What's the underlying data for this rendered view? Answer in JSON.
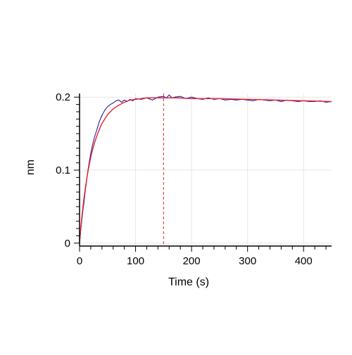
{
  "chart_data": {
    "type": "line",
    "xlabel": "Time (s)",
    "ylabel": "nm",
    "xlim": [
      0,
      450
    ],
    "ylim": [
      -0.004,
      0.205
    ],
    "x_ticks": [
      0,
      100,
      200,
      300,
      400
    ],
    "x_tick_labels": [
      "0",
      "100",
      "200",
      "300",
      "400"
    ],
    "y_ticks": [
      0,
      0.1,
      0.2
    ],
    "y_tick_labels": [
      "0",
      "0.1",
      "0.2"
    ],
    "grid": true,
    "legend": "none",
    "colors": {
      "measured": "#1f1f9e",
      "fit": "#e8202a",
      "marker_line": "#e8202a",
      "grid": "#e6e6e6",
      "axis": "#000000"
    },
    "series": [
      {
        "style": "measured",
        "x": [
          0,
          2,
          4,
          6,
          8,
          10,
          12,
          15,
          18,
          21,
          24,
          27,
          30,
          35,
          40,
          45,
          50,
          55,
          60,
          65,
          70,
          75,
          80,
          85,
          90,
          95,
          100,
          110,
          120,
          130,
          140,
          150,
          155,
          160,
          165,
          170,
          180,
          190,
          200,
          210,
          220,
          230,
          240,
          250,
          260,
          270,
          280,
          290,
          300,
          310,
          320,
          330,
          340,
          350,
          360,
          370,
          380,
          390,
          400,
          410,
          420,
          430,
          440,
          450
        ],
        "y": [
          0.0,
          0.017,
          0.031,
          0.045,
          0.056,
          0.071,
          0.082,
          0.1,
          0.114,
          0.127,
          0.137,
          0.146,
          0.153,
          0.166,
          0.175,
          0.182,
          0.187,
          0.19,
          0.192,
          0.195,
          0.196,
          0.193,
          0.196,
          0.194,
          0.197,
          0.195,
          0.198,
          0.197,
          0.199,
          0.196,
          0.2,
          0.201,
          0.199,
          0.203,
          0.199,
          0.2,
          0.201,
          0.198,
          0.2,
          0.198,
          0.197,
          0.199,
          0.197,
          0.198,
          0.196,
          0.197,
          0.196,
          0.197,
          0.196,
          0.195,
          0.197,
          0.196,
          0.195,
          0.196,
          0.194,
          0.196,
          0.195,
          0.194,
          0.195,
          0.194,
          0.194,
          0.195,
          0.193,
          0.194
        ]
      },
      {
        "style": "fit",
        "x": [
          0,
          2,
          4,
          6,
          8,
          10,
          12,
          15,
          18,
          21,
          24,
          27,
          30,
          35,
          40,
          45,
          50,
          55,
          60,
          70,
          80,
          90,
          100,
          110,
          120,
          130,
          140,
          150,
          175,
          200,
          250,
          300,
          350,
          400,
          450
        ],
        "y": [
          0.0,
          0.019,
          0.035,
          0.049,
          0.062,
          0.074,
          0.084,
          0.098,
          0.11,
          0.121,
          0.13,
          0.138,
          0.145,
          0.155,
          0.164,
          0.17,
          0.176,
          0.18,
          0.184,
          0.189,
          0.193,
          0.196,
          0.197,
          0.198,
          0.199,
          0.199,
          0.199,
          0.199,
          0.199,
          0.198,
          0.198,
          0.197,
          0.196,
          0.195,
          0.194
        ]
      }
    ],
    "markers": [
      0,
      150
    ]
  }
}
